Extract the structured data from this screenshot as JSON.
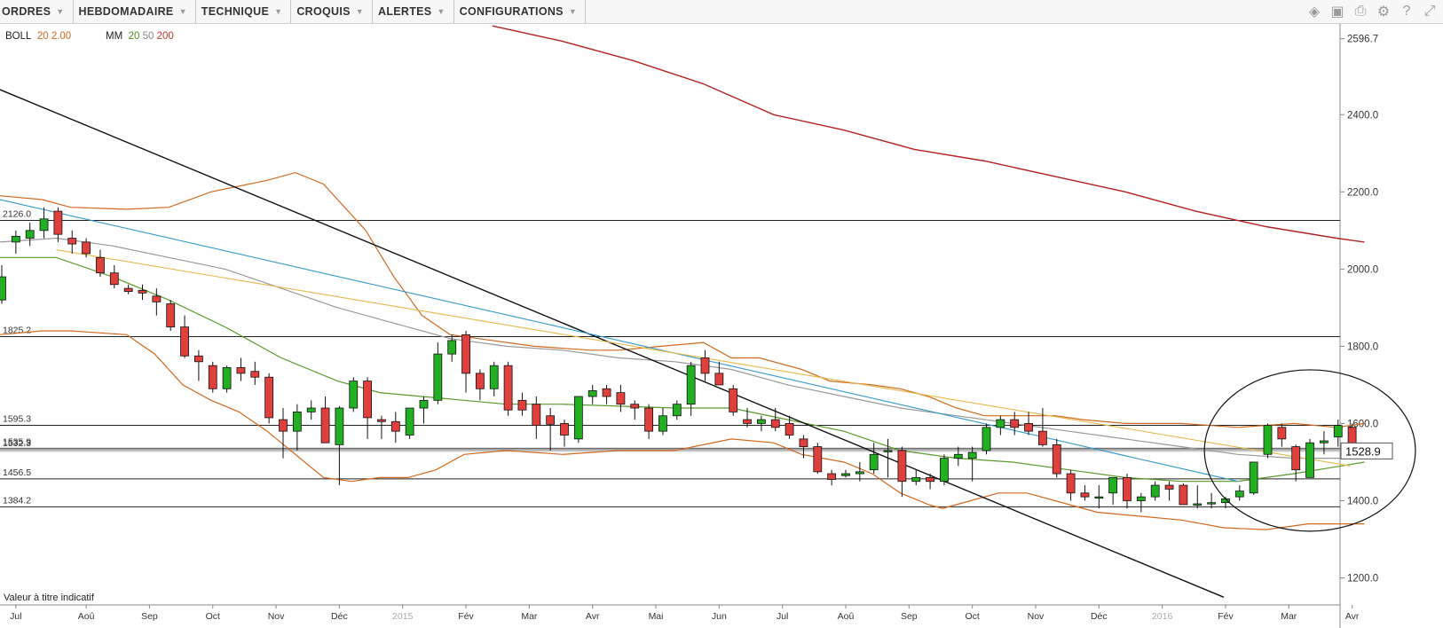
{
  "menu": {
    "items": [
      {
        "name": "menu-ordres",
        "label": "ORDRES"
      },
      {
        "name": "menu-hebdomadaire",
        "label": "HEBDOMADAIRE"
      },
      {
        "name": "menu-technique",
        "label": "TECHNIQUE"
      },
      {
        "name": "menu-croquis",
        "label": "CROQUIS"
      },
      {
        "name": "menu-alertes",
        "label": "ALERTES"
      },
      {
        "name": "menu-configurations",
        "label": "CONFIGURATIONS"
      }
    ],
    "caret": "▼"
  },
  "toolbar_icons": [
    "layers-icon",
    "image-icon",
    "print-icon",
    "gear-icon",
    "help-icon",
    "fullscreen-icon"
  ],
  "legend": {
    "boll_label": "BOLL",
    "boll_period": "20",
    "boll_dev": "2.00",
    "mm_label": "MM",
    "mm_p1": "20",
    "mm_p2": "50",
    "mm_p3": "200"
  },
  "disclaimer": "Valeur à titre indicatif",
  "colors": {
    "up_candle": "#22b022",
    "down_candle": "#e0403c",
    "bollinger": "#d2691e",
    "ma20": "#5a9a2a",
    "ma50": "#999999",
    "ma200": "#b22222",
    "trend_blue": "#3399cc",
    "trend_yellow": "#e6b84a"
  },
  "chart_data": {
    "type": "candlestick",
    "period": "weekly",
    "ylim": [
      1130,
      2635
    ],
    "yticks": [
      1200,
      1400,
      1600,
      1800,
      2000,
      2200,
      2400,
      2596.7
    ],
    "ytick_labels": [
      "1200.0",
      "1400.0",
      "1600.0",
      "1800.0",
      "2000.0",
      "2200.0",
      "2400.0",
      "2596.7"
    ],
    "current_price": 1528.9,
    "current_price_label": "1528.9",
    "month_labels": [
      "Jul",
      "Aoû",
      "Sep",
      "Oct",
      "Nov",
      "Déc",
      "2015",
      "Fév",
      "Mar",
      "Avr",
      "Mai",
      "Jun",
      "Jul",
      "Aoû",
      "Sep",
      "Oct",
      "Nov",
      "Déc",
      "2016",
      "Fév",
      "Mar",
      "Avr"
    ],
    "month_label_index": [
      1,
      6,
      10.5,
      15,
      19.5,
      24,
      28.5,
      33,
      37.5,
      42,
      46.5,
      51,
      55.5,
      60,
      64.5,
      69,
      73.5,
      78,
      82.5,
      87,
      91.5,
      96
    ],
    "year_markers": [
      "2015",
      "2016"
    ],
    "horizontal_levels": [
      {
        "value": 2126.0,
        "label": "2126.0"
      },
      {
        "value": 1825.2,
        "label": "1825.2"
      },
      {
        "value": 1595.3,
        "label": "1595.3"
      },
      {
        "value": 1535.9,
        "label": "1535.9"
      },
      {
        "value": 1532.3,
        "label": "1532.3"
      },
      {
        "value": 1456.5,
        "label": "1456.5"
      },
      {
        "value": 1384.2,
        "label": "1384.2"
      }
    ],
    "ohlc": [
      [
        1920,
        2010,
        1910,
        1980
      ],
      [
        2070,
        2100,
        2040,
        2085
      ],
      [
        2080,
        2120,
        2060,
        2100
      ],
      [
        2100,
        2160,
        2080,
        2130
      ],
      [
        2150,
        2160,
        2070,
        2090
      ],
      [
        2080,
        2100,
        2040,
        2065
      ],
      [
        2070,
        2080,
        2030,
        2040
      ],
      [
        2030,
        2050,
        1980,
        1990
      ],
      [
        1990,
        2010,
        1950,
        1960
      ],
      [
        1950,
        1960,
        1935,
        1942
      ],
      [
        1945,
        1960,
        1920,
        1938
      ],
      [
        1930,
        1950,
        1880,
        1915
      ],
      [
        1910,
        1920,
        1840,
        1850
      ],
      [
        1850,
        1880,
        1770,
        1775
      ],
      [
        1775,
        1790,
        1710,
        1760
      ],
      [
        1750,
        1760,
        1680,
        1690
      ],
      [
        1690,
        1750,
        1680,
        1745
      ],
      [
        1745,
        1770,
        1710,
        1730
      ],
      [
        1735,
        1760,
        1700,
        1720
      ],
      [
        1720,
        1730,
        1600,
        1615
      ],
      [
        1610,
        1640,
        1510,
        1580
      ],
      [
        1580,
        1650,
        1530,
        1630
      ],
      [
        1630,
        1660,
        1610,
        1640
      ],
      [
        1640,
        1670,
        1560,
        1550
      ],
      [
        1545,
        1645,
        1440,
        1640
      ],
      [
        1640,
        1720,
        1630,
        1710
      ],
      [
        1710,
        1720,
        1560,
        1615
      ],
      [
        1610,
        1620,
        1560,
        1605
      ],
      [
        1605,
        1630,
        1550,
        1580
      ],
      [
        1570,
        1630,
        1560,
        1640
      ],
      [
        1640,
        1670,
        1600,
        1660
      ],
      [
        1660,
        1810,
        1650,
        1780
      ],
      [
        1780,
        1830,
        1760,
        1815
      ],
      [
        1830,
        1840,
        1680,
        1730
      ],
      [
        1730,
        1740,
        1660,
        1690
      ],
      [
        1690,
        1760,
        1670,
        1750
      ],
      [
        1750,
        1760,
        1620,
        1635
      ],
      [
        1660,
        1680,
        1620,
        1635
      ],
      [
        1650,
        1670,
        1560,
        1595
      ],
      [
        1620,
        1640,
        1530,
        1598
      ],
      [
        1600,
        1610,
        1540,
        1570
      ],
      [
        1560,
        1670,
        1550,
        1670
      ],
      [
        1670,
        1700,
        1650,
        1685
      ],
      [
        1690,
        1700,
        1650,
        1670
      ],
      [
        1680,
        1700,
        1630,
        1650
      ],
      [
        1650,
        1660,
        1610,
        1640
      ],
      [
        1640,
        1650,
        1560,
        1580
      ],
      [
        1580,
        1640,
        1570,
        1620
      ],
      [
        1620,
        1660,
        1610,
        1650
      ],
      [
        1650,
        1760,
        1620,
        1750
      ],
      [
        1770,
        1790,
        1710,
        1730
      ],
      [
        1730,
        1760,
        1700,
        1700
      ],
      [
        1690,
        1700,
        1620,
        1630
      ],
      [
        1610,
        1640,
        1590,
        1600
      ],
      [
        1600,
        1620,
        1580,
        1610
      ],
      [
        1610,
        1640,
        1580,
        1590
      ],
      [
        1600,
        1620,
        1560,
        1570
      ],
      [
        1560,
        1570,
        1510,
        1540
      ],
      [
        1540,
        1550,
        1470,
        1475
      ],
      [
        1470,
        1480,
        1440,
        1455
      ],
      [
        1465,
        1480,
        1460,
        1470
      ],
      [
        1470,
        1500,
        1450,
        1475
      ],
      [
        1480,
        1550,
        1470,
        1520
      ],
      [
        1530,
        1560,
        1460,
        1530
      ],
      [
        1530,
        1540,
        1410,
        1450
      ],
      [
        1450,
        1480,
        1440,
        1460
      ],
      [
        1460,
        1470,
        1430,
        1450
      ],
      [
        1450,
        1520,
        1440,
        1510
      ],
      [
        1510,
        1540,
        1490,
        1520
      ],
      [
        1510,
        1540,
        1450,
        1525
      ],
      [
        1530,
        1600,
        1520,
        1590
      ],
      [
        1590,
        1620,
        1570,
        1610
      ],
      [
        1610,
        1630,
        1570,
        1590
      ],
      [
        1600,
        1630,
        1570,
        1580
      ],
      [
        1580,
        1640,
        1540,
        1545
      ],
      [
        1545,
        1560,
        1460,
        1470
      ],
      [
        1470,
        1480,
        1400,
        1420
      ],
      [
        1420,
        1440,
        1400,
        1410
      ],
      [
        1410,
        1440,
        1380,
        1410
      ],
      [
        1420,
        1460,
        1390,
        1460
      ],
      [
        1460,
        1470,
        1380,
        1400
      ],
      [
        1400,
        1420,
        1370,
        1410
      ],
      [
        1410,
        1450,
        1400,
        1440
      ],
      [
        1440,
        1450,
        1400,
        1430
      ],
      [
        1440,
        1445,
        1390,
        1390
      ],
      [
        1390,
        1440,
        1380,
        1392
      ],
      [
        1392,
        1420,
        1380,
        1395
      ],
      [
        1395,
        1410,
        1380,
        1405
      ],
      [
        1410,
        1440,
        1400,
        1425
      ],
      [
        1420,
        1500,
        1415,
        1500
      ],
      [
        1520,
        1600,
        1510,
        1595
      ],
      [
        1590,
        1600,
        1540,
        1560
      ],
      [
        1540,
        1545,
        1450,
        1480
      ],
      [
        1460,
        1560,
        1460,
        1550
      ],
      [
        1550,
        1580,
        1520,
        1555
      ],
      [
        1565,
        1610,
        1540,
        1595
      ],
      [
        1590,
        1600,
        1525,
        1528
      ],
      [
        1525,
        1540,
        1515,
        1529
      ]
    ],
    "bollinger_upper": [
      [
        0,
        2190
      ],
      [
        3,
        2180
      ],
      [
        5,
        2160
      ],
      [
        9,
        2155
      ],
      [
        12,
        2160
      ],
      [
        15,
        2200
      ],
      [
        19,
        2230
      ],
      [
        21,
        2250
      ],
      [
        23,
        2220
      ],
      [
        26,
        2100
      ],
      [
        28,
        1980
      ],
      [
        30,
        1880
      ],
      [
        32,
        1830
      ],
      [
        34,
        1820
      ],
      [
        38,
        1800
      ],
      [
        42,
        1790
      ],
      [
        44,
        1790
      ],
      [
        47,
        1800
      ],
      [
        50,
        1810
      ],
      [
        52,
        1770
      ],
      [
        54,
        1770
      ],
      [
        57,
        1740
      ],
      [
        59,
        1710
      ],
      [
        62,
        1700
      ],
      [
        64,
        1690
      ],
      [
        66,
        1670
      ],
      [
        68,
        1640
      ],
      [
        70,
        1620
      ],
      [
        72,
        1620
      ],
      [
        75,
        1620
      ],
      [
        77,
        1610
      ],
      [
        80,
        1600
      ],
      [
        84,
        1600
      ],
      [
        88,
        1590
      ],
      [
        92,
        1600
      ],
      [
        95,
        1590
      ],
      [
        97,
        1600
      ]
    ],
    "bollinger_lower": [
      [
        0,
        1830
      ],
      [
        3,
        1840
      ],
      [
        5,
        1840
      ],
      [
        9,
        1830
      ],
      [
        11,
        1780
      ],
      [
        13,
        1700
      ],
      [
        15,
        1660
      ],
      [
        17,
        1630
      ],
      [
        19,
        1580
      ],
      [
        21,
        1520
      ],
      [
        23,
        1460
      ],
      [
        25,
        1450
      ],
      [
        27,
        1460
      ],
      [
        29,
        1460
      ],
      [
        31,
        1480
      ],
      [
        33,
        1520
      ],
      [
        36,
        1530
      ],
      [
        40,
        1520
      ],
      [
        44,
        1530
      ],
      [
        48,
        1530
      ],
      [
        52,
        1560
      ],
      [
        55,
        1550
      ],
      [
        57,
        1520
      ],
      [
        60,
        1500
      ],
      [
        62,
        1470
      ],
      [
        64,
        1420
      ],
      [
        66,
        1390
      ],
      [
        67,
        1380
      ],
      [
        69,
        1400
      ],
      [
        71,
        1420
      ],
      [
        73,
        1420
      ],
      [
        75,
        1400
      ],
      [
        78,
        1370
      ],
      [
        81,
        1360
      ],
      [
        84,
        1350
      ],
      [
        87,
        1330
      ],
      [
        90,
        1325
      ],
      [
        93,
        1340
      ],
      [
        97,
        1340
      ]
    ],
    "ma20": [
      [
        0,
        2030
      ],
      [
        4,
        2030
      ],
      [
        8,
        1980
      ],
      [
        12,
        1920
      ],
      [
        16,
        1850
      ],
      [
        20,
        1770
      ],
      [
        24,
        1710
      ],
      [
        27,
        1680
      ],
      [
        30,
        1670
      ],
      [
        33,
        1660
      ],
      [
        36,
        1650
      ],
      [
        40,
        1650
      ],
      [
        44,
        1645
      ],
      [
        48,
        1640
      ],
      [
        52,
        1640
      ],
      [
        56,
        1610
      ],
      [
        60,
        1580
      ],
      [
        64,
        1530
      ],
      [
        68,
        1510
      ],
      [
        72,
        1500
      ],
      [
        76,
        1480
      ],
      [
        80,
        1460
      ],
      [
        84,
        1450
      ],
      [
        88,
        1450
      ],
      [
        92,
        1470
      ],
      [
        97,
        1500
      ]
    ],
    "ma50": [
      [
        0,
        2070
      ],
      [
        4,
        2080
      ],
      [
        8,
        2060
      ],
      [
        12,
        2030
      ],
      [
        16,
        2000
      ],
      [
        20,
        1950
      ],
      [
        24,
        1900
      ],
      [
        28,
        1860
      ],
      [
        32,
        1820
      ],
      [
        36,
        1800
      ],
      [
        40,
        1790
      ],
      [
        44,
        1770
      ],
      [
        48,
        1760
      ],
      [
        52,
        1740
      ],
      [
        56,
        1700
      ],
      [
        60,
        1670
      ],
      [
        64,
        1640
      ],
      [
        68,
        1620
      ],
      [
        72,
        1600
      ],
      [
        76,
        1580
      ],
      [
        80,
        1560
      ],
      [
        84,
        1540
      ],
      [
        88,
        1520
      ],
      [
        92,
        1510
      ],
      [
        97,
        1510
      ]
    ],
    "ma200": [
      [
        35,
        2630
      ],
      [
        40,
        2590
      ],
      [
        45,
        2540
      ],
      [
        50,
        2480
      ],
      [
        55,
        2400
      ],
      [
        60,
        2360
      ],
      [
        65,
        2310
      ],
      [
        70,
        2280
      ],
      [
        75,
        2240
      ],
      [
        80,
        2200
      ],
      [
        85,
        2150
      ],
      [
        90,
        2110
      ],
      [
        95,
        2080
      ],
      [
        97,
        2070
      ]
    ],
    "trendlines": [
      {
        "color": "black",
        "points": [
          [
            -1,
            2480
          ],
          [
            87,
            1150
          ]
        ]
      },
      {
        "color": "blue",
        "points": [
          [
            0,
            2180
          ],
          [
            88,
            1450
          ]
        ]
      },
      {
        "color": "yellow",
        "points": [
          [
            4,
            2050
          ],
          [
            96,
            1490
          ]
        ]
      }
    ],
    "annotation": {
      "type": "ellipse",
      "center": [
        93,
        1530
      ],
      "rx": 7.5,
      "ry": 95
    }
  }
}
